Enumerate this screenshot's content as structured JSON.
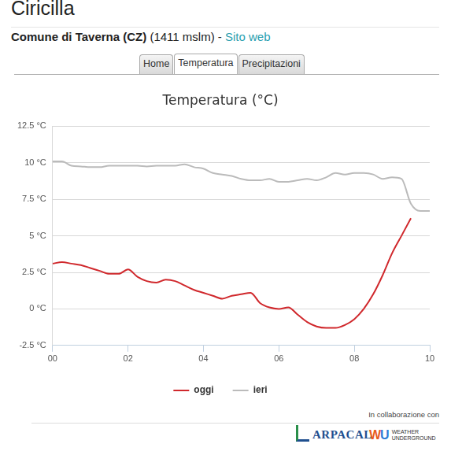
{
  "page": {
    "title": "Ciricilla",
    "subtitle_bold": "Comune di Taverna (CZ)",
    "subtitle_rest": "(1411 mslm) - ",
    "subtitle_link": "Sito web",
    "tabs": [
      "Home",
      "Temperatura",
      "Precipitazioni"
    ],
    "active_tab": "Temperatura",
    "footer": "In collaborazione con",
    "logo_1": "ARPACAL",
    "logo_2": [
      "WEATHER",
      "UNDERGROUND"
    ]
  },
  "chart_data": {
    "type": "line",
    "title": "Temperatura (°C)",
    "xlim": [
      0,
      10
    ],
    "xticks": [
      {
        "value": 0,
        "label": "00"
      },
      {
        "value": 2,
        "label": "02"
      },
      {
        "value": 4,
        "label": "04"
      },
      {
        "value": 6,
        "label": "06"
      },
      {
        "value": 8,
        "label": "08"
      },
      {
        "value": 10,
        "label": "10"
      }
    ],
    "ylim": [
      -2.5,
      12.5
    ],
    "yticks": [
      {
        "value": -2.5,
        "label": "-2.5 °C"
      },
      {
        "value": 0,
        "label": "0 °C"
      },
      {
        "value": 2.5,
        "label": "2.5 °C"
      },
      {
        "value": 5,
        "label": "5 °C"
      },
      {
        "value": 7.5,
        "label": "7.5 °C"
      },
      {
        "value": 10,
        "label": "10 °C"
      },
      {
        "value": 12.5,
        "label": "12.5 °C"
      }
    ],
    "grid": "y",
    "legend": "bottom",
    "series": [
      {
        "name": "oggi",
        "color": "#d0282c",
        "marker": "none",
        "x": [
          0,
          0.25,
          0.5,
          0.75,
          1,
          1.25,
          1.5,
          1.75,
          2,
          2.25,
          2.5,
          2.75,
          3,
          3.25,
          3.5,
          3.75,
          4,
          4.25,
          4.5,
          4.75,
          5,
          5.25,
          5.5,
          5.75,
          6,
          6.25,
          6.5,
          6.75,
          7,
          7.25,
          7.5,
          7.75,
          8,
          8.25,
          8.5,
          8.75,
          9,
          9.25,
          9.5
        ],
        "values": [
          3.1,
          3.2,
          3.1,
          3.0,
          2.8,
          2.6,
          2.4,
          2.4,
          2.7,
          2.2,
          1.9,
          1.8,
          2.0,
          1.9,
          1.6,
          1.3,
          1.1,
          0.9,
          0.7,
          0.9,
          1.0,
          1.1,
          0.4,
          0.1,
          0.0,
          0.1,
          -0.4,
          -0.9,
          -1.2,
          -1.3,
          -1.3,
          -1.1,
          -0.7,
          0.0,
          1.0,
          2.3,
          3.8,
          5.0,
          6.2
        ]
      },
      {
        "name": "ieri",
        "color": "#bbbbbb",
        "marker": "none",
        "x": [
          0,
          0.25,
          0.5,
          0.75,
          1,
          1.25,
          1.5,
          1.75,
          2,
          2.25,
          2.5,
          2.75,
          3,
          3.25,
          3.5,
          3.75,
          4,
          4.25,
          4.5,
          4.75,
          5,
          5.25,
          5.5,
          5.75,
          6,
          6.25,
          6.5,
          6.75,
          7,
          7.25,
          7.5,
          7.75,
          8,
          8.25,
          8.5,
          8.75,
          9,
          9.25,
          9.5,
          9.75,
          10
        ],
        "values": [
          10.1,
          10.1,
          9.8,
          9.75,
          9.7,
          9.7,
          9.8,
          9.8,
          9.8,
          9.8,
          9.75,
          9.8,
          9.8,
          9.8,
          9.9,
          9.7,
          9.6,
          9.3,
          9.2,
          9.1,
          8.9,
          8.8,
          8.8,
          8.9,
          8.7,
          8.7,
          8.8,
          8.9,
          8.8,
          9.0,
          9.3,
          9.2,
          9.3,
          9.3,
          9.2,
          8.9,
          9.0,
          8.9,
          7.2,
          6.7,
          6.7
        ]
      }
    ]
  }
}
